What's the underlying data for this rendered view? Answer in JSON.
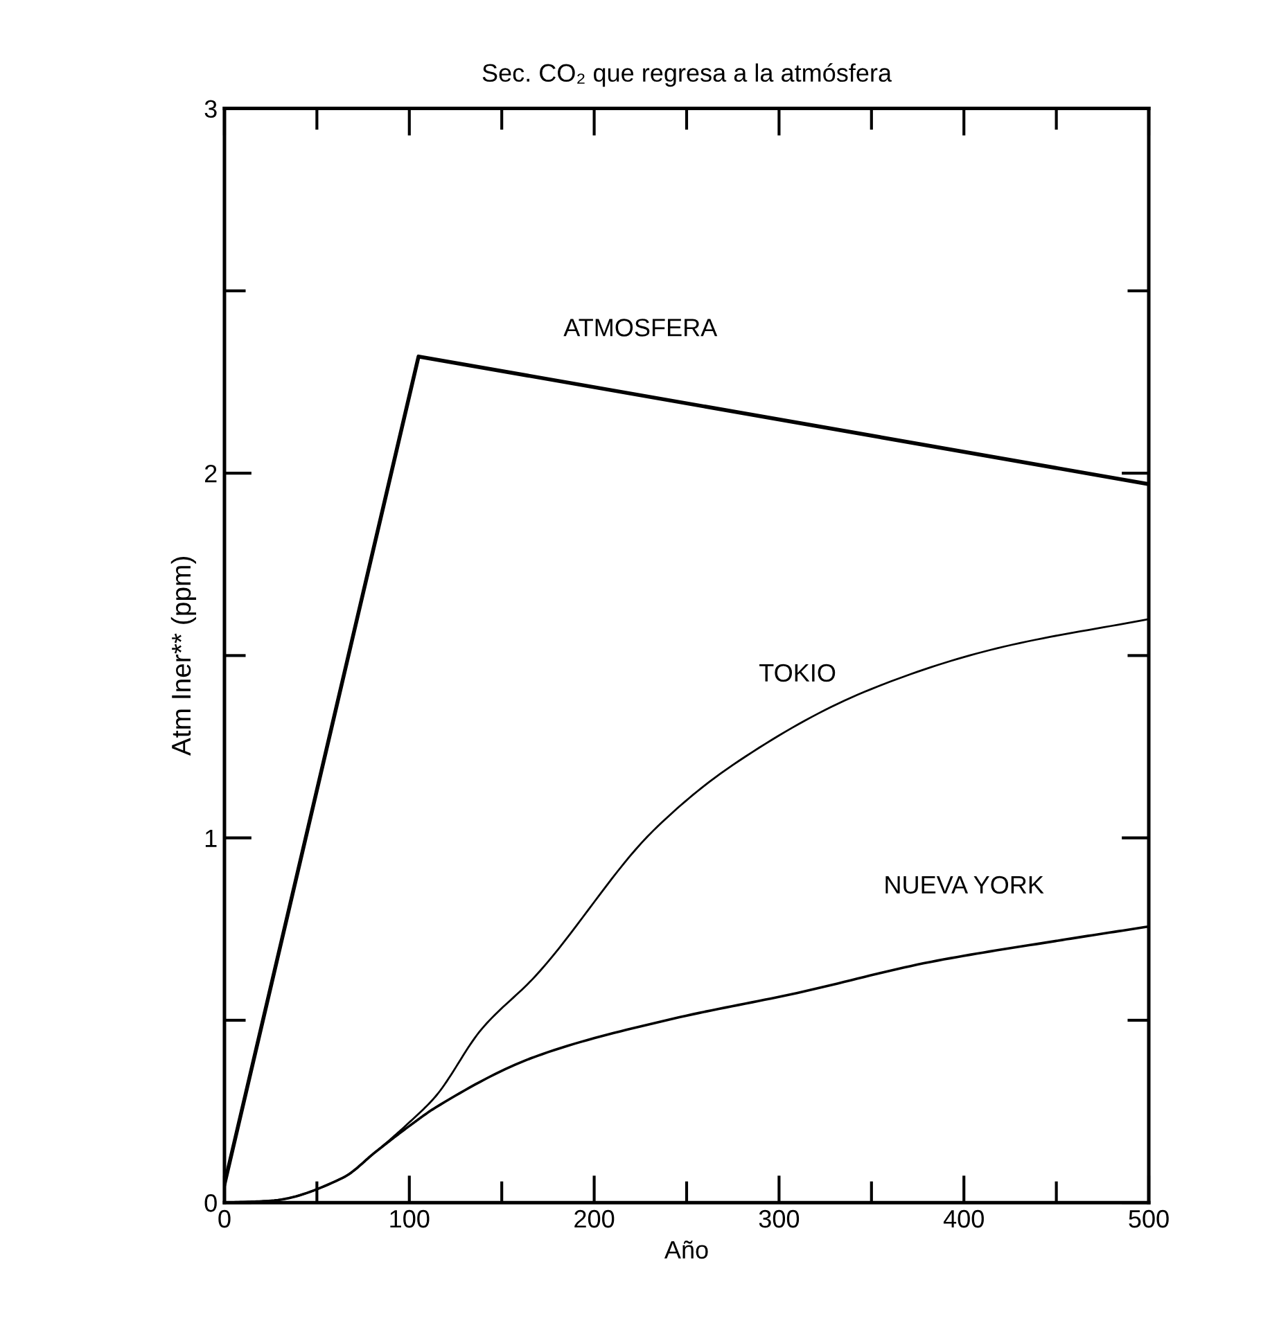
{
  "chart_data": {
    "type": "line",
    "title": "Sec. CO₂ que regresa a la atmósfera",
    "xlabel": "Año",
    "ylabel": "Atm Iner** (ppm)",
    "xlim": [
      0,
      500
    ],
    "ylim": [
      0,
      3
    ],
    "xticks": [
      0,
      {
        "value": 50,
        "label": null
      },
      100,
      {
        "value": 150,
        "label": null
      },
      200,
      {
        "value": 250,
        "label": null
      },
      300,
      {
        "value": 350,
        "label": null
      },
      400,
      {
        "value": 450,
        "label": null
      },
      500
    ],
    "yticks": [
      0,
      {
        "value": 0.5,
        "label": null
      },
      1,
      {
        "value": 1.5,
        "label": null
      },
      2,
      {
        "value": 2.5,
        "label": null
      },
      3
    ],
    "grid": false,
    "legend": false,
    "marker": "none",
    "line_style": "solid",
    "series": [
      {
        "name": "ATMOSFERA",
        "color": "#000000",
        "x": [
          0,
          105,
          500
        ],
        "values": [
          0.05,
          2.32,
          1.97
        ]
      },
      {
        "name": "TOKIO",
        "color": "#000000",
        "x": [
          0,
          25,
          64,
          82,
          100,
          114,
          139,
          168,
          232,
          275,
          346,
          418,
          500
        ],
        "values": [
          0,
          0.005,
          0.068,
          0.14,
          0.22,
          0.29,
          0.475,
          0.62,
          1.02,
          1.2,
          1.4,
          1.52,
          1.6
        ]
      },
      {
        "name": "NUEVA YORK",
        "color": "#000000",
        "x": [
          0,
          25,
          64,
          82,
          100,
          114,
          168,
          239,
          310,
          382,
          453,
          500
        ],
        "values": [
          0,
          0.005,
          0.068,
          0.14,
          0.21,
          0.26,
          0.4,
          0.5,
          0.575,
          0.66,
          0.72,
          0.757
        ]
      }
    ]
  }
}
